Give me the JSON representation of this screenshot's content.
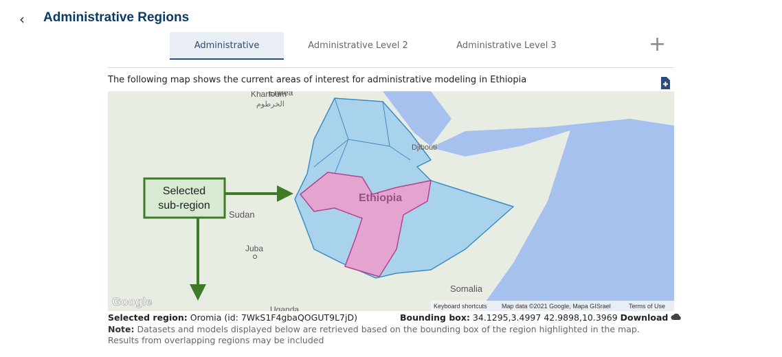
{
  "header": {
    "title": "Administrative Regions"
  },
  "tabs": [
    "Administrative",
    "Administrative Level 2",
    "Administrative Level 3"
  ],
  "description": "The following map shows the current areas of interest for administrative modeling in Ethiopia",
  "map": {
    "labels": {
      "eritrea": "Eritrea",
      "khartoum": "Khartoum",
      "khartoum_ar": "الخرطوم",
      "djibouti": "Djibouti",
      "ethiopia": "Ethiopia",
      "sudan": "Sudan",
      "juba": "Juba",
      "somalia": "Somalia",
      "uganda": "Uganda"
    },
    "annotation": [
      "Selected",
      "sub-region"
    ],
    "logo": "Google",
    "attribution": [
      "Keyboard shortcuts",
      "Map data ©2021 Google, Mapa GISrael",
      "Terms of Use"
    ]
  },
  "footer": {
    "selected_label": "Selected region:",
    "selected_value": "Oromia (id: 7WkS1F4gbaQOGUT9L7jD)",
    "bbox_label": "Bounding box:",
    "bbox_value": "34.1295,3.4997 42.9898,10.3969",
    "download": "Download",
    "note_label": "Note:",
    "note": "Datasets and models displayed below are retrieved based on the bounding box of the region highlighted in the map. Results from overlapping regions may be included"
  }
}
